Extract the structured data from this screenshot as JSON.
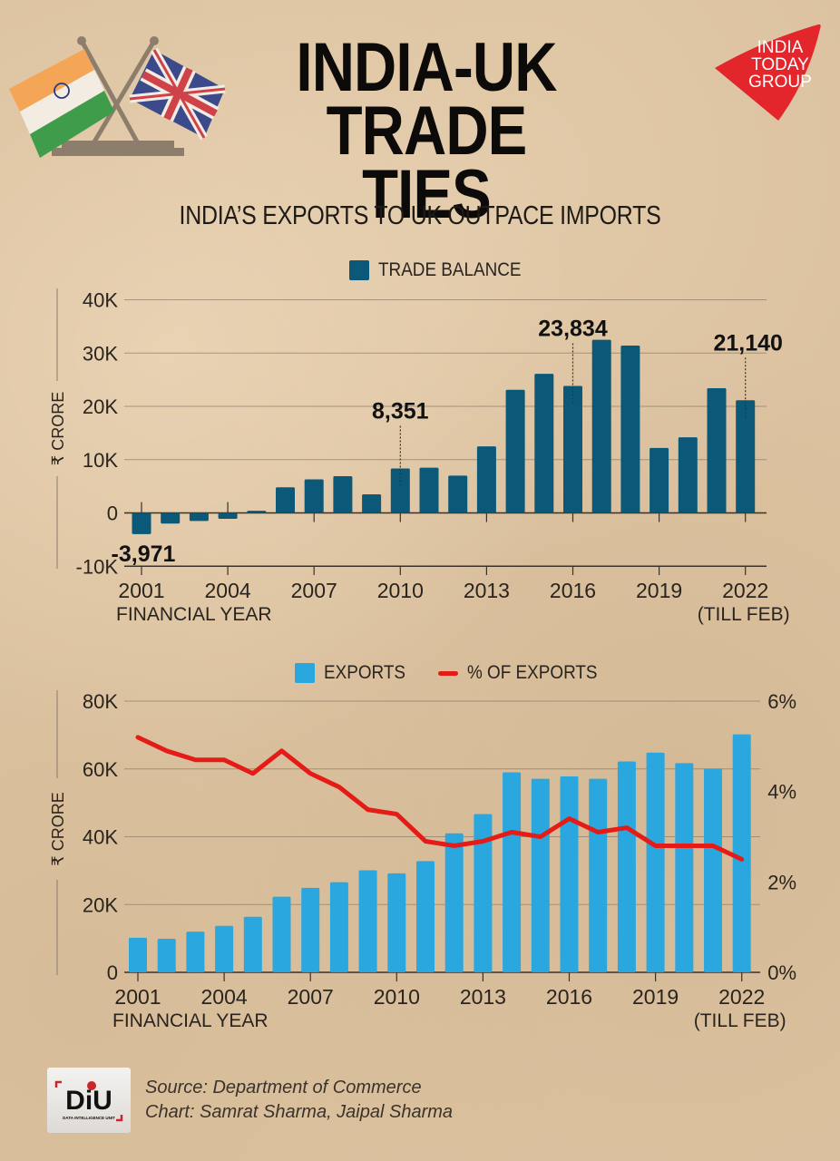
{
  "header": {
    "title_line1": "INDIA-UK",
    "title_line2": "TRADE TIES",
    "subtitle": "INDIA’S EXPORTS TO UK OUTPACE IMPORTS",
    "logo": {
      "line1": "INDIA",
      "line2": "TODAY",
      "line3": "GROUP",
      "color": "#e2262b"
    },
    "flags_icon": "crossed-india-uk-flags-icon"
  },
  "colors": {
    "trade_balance": "#0b5878",
    "exports": "#2aa7df",
    "percent_line": "#e41b17",
    "grid": "#8a7c6a",
    "axis": "#3a3129"
  },
  "chart_data": [
    {
      "type": "bar",
      "title": "TRADE BALANCE",
      "legend": [
        {
          "label": "TRADE BALANCE",
          "kind": "bar"
        }
      ],
      "legend_position": "top-center",
      "xlabel": "FINANCIAL YEAR",
      "ylabel": "₹ CRORE",
      "x": [
        2001,
        2002,
        2003,
        2004,
        2005,
        2006,
        2007,
        2008,
        2009,
        2010,
        2011,
        2012,
        2013,
        2014,
        2015,
        2016,
        2017,
        2018,
        2019,
        2020,
        2021,
        2022
      ],
      "x_ticks": [
        "2001",
        "2004",
        "2007",
        "2010",
        "2013",
        "2016",
        "2019",
        "2022"
      ],
      "x_tick_note": "(TILL FEB)",
      "y_ticks": [
        "-10K",
        "0",
        "10K",
        "20K",
        "30K",
        "40K"
      ],
      "ylim": [
        -10000,
        40000
      ],
      "grid": true,
      "series": [
        {
          "name": "TRADE BALANCE",
          "values": [
            -3971,
            -2000,
            -1500,
            -1100,
            400,
            4800,
            6300,
            6900,
            3500,
            8351,
            8500,
            7000,
            12500,
            23100,
            26100,
            23834,
            32500,
            31400,
            12200,
            14200,
            23400,
            21140
          ]
        }
      ],
      "annotations": [
        {
          "x": 2001,
          "text": "-3,971"
        },
        {
          "x": 2010,
          "text": "8,351"
        },
        {
          "x": 2016,
          "text": "23,834"
        },
        {
          "x": 2022,
          "text": "21,140"
        }
      ]
    },
    {
      "type": "bar",
      "title": "EXPORTS and % OF EXPORTS",
      "legend": [
        {
          "label": "EXPORTS",
          "kind": "bar"
        },
        {
          "label": "% OF EXPORTS",
          "kind": "line"
        }
      ],
      "legend_position": "top-center",
      "xlabel": "FINANCIAL YEAR",
      "ylabel": "₹ CRORE",
      "x": [
        2001,
        2002,
        2003,
        2004,
        2005,
        2006,
        2007,
        2008,
        2009,
        2010,
        2011,
        2012,
        2013,
        2014,
        2015,
        2016,
        2017,
        2018,
        2019,
        2020,
        2021,
        2022
      ],
      "x_ticks": [
        "2001",
        "2004",
        "2007",
        "2010",
        "2013",
        "2016",
        "2019",
        "2022"
      ],
      "x_tick_note": "(TILL FEB)",
      "y_ticks": [
        "0",
        "20K",
        "40K",
        "60K",
        "80K"
      ],
      "ylim": [
        0,
        80000
      ],
      "y2_ticks": [
        "0%",
        "2%",
        "4%",
        "6%"
      ],
      "y2lim": [
        0,
        6
      ],
      "grid": true,
      "series": [
        {
          "name": "EXPORTS",
          "type": "bar",
          "axis": "left",
          "values": [
            10200,
            9900,
            12000,
            13700,
            16400,
            22300,
            24900,
            26600,
            30100,
            29200,
            32800,
            41000,
            46700,
            59000,
            57100,
            57800,
            57100,
            62200,
            64800,
            61700,
            60100,
            70200
          ]
        },
        {
          "name": "% OF EXPORTS",
          "type": "line",
          "axis": "right",
          "values": [
            5.2,
            4.9,
            4.7,
            4.7,
            4.4,
            4.9,
            4.4,
            4.1,
            3.6,
            3.5,
            2.9,
            2.8,
            2.9,
            3.1,
            3.0,
            3.4,
            3.1,
            3.2,
            2.8,
            2.8,
            2.8,
            2.5
          ]
        }
      ]
    }
  ],
  "footer": {
    "logo_text": "DiU",
    "logo_subtext": "DATA INTELLIGENCE UNIT",
    "source": "Source: Department of Commerce",
    "credit": "Chart: Samrat Sharma, Jaipal Sharma"
  }
}
